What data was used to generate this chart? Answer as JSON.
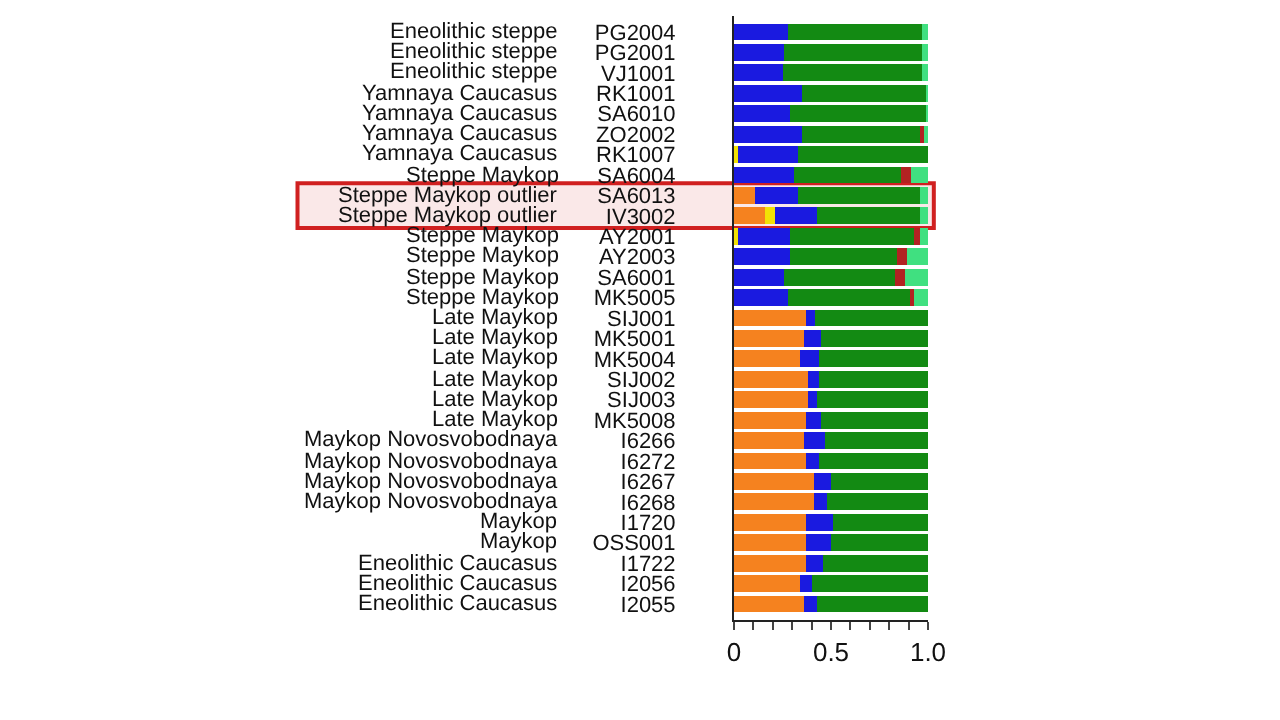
{
  "chart_data": {
    "type": "bar",
    "orientation": "horizontal",
    "stacked": true,
    "categories": [
      "PG2004",
      "PG2001",
      "VJ1001",
      "RK1001",
      "SA6010",
      "ZO2002",
      "RK1007",
      "SA6004",
      "SA6013",
      "IV3002",
      "AY2001",
      "AY2003",
      "SA6001",
      "MK5005",
      "SIJ001",
      "MK5001",
      "MK5004",
      "SIJ002",
      "SIJ003",
      "MK5008",
      "I6266",
      "I6272",
      "I6267",
      "I6268",
      "I1720",
      "OSS001",
      "I1722",
      "I2056",
      "I2055"
    ],
    "y2_categories": [
      "Eneolithic steppe",
      "Eneolithic steppe",
      "Eneolithic steppe",
      "Yamnaya Caucasus",
      "Yamnaya Caucasus",
      "Yamnaya Caucasus",
      "Yamnaya Caucasus",
      "Steppe Maykop",
      "Steppe Maykop outlier",
      "Steppe Maykop outlier",
      "Steppe Maykop",
      "Steppe Maykop",
      "Steppe Maykop",
      "Steppe Maykop",
      "Late Maykop",
      "Late Maykop",
      "Late Maykop",
      "Late Maykop",
      "Late Maykop",
      "Late Maykop",
      "Maykop Novosvobodnaya",
      "Maykop Novosvobodnaya",
      "Maykop Novosvobodnaya",
      "Maykop Novosvobodnaya",
      "Maykop",
      "Maykop",
      "Eneolithic Caucasus",
      "Eneolithic Caucasus",
      "Eneolithic Caucasus"
    ],
    "series": [
      {
        "color": "#f5821f",
        "values": [
          0,
          0,
          0,
          0,
          0,
          0,
          0,
          0,
          0.11,
          0.16,
          0,
          0,
          0,
          0,
          0.37,
          0.36,
          0.34,
          0.38,
          0.38,
          0.37,
          0.36,
          0.37,
          0.41,
          0.41,
          0.37,
          0.37,
          0.37,
          0.34,
          0.36
        ]
      },
      {
        "color": "#f2e205",
        "values": [
          0,
          0,
          0,
          0,
          0,
          0,
          0.02,
          0,
          0,
          0.05,
          0.02,
          0,
          0,
          0,
          0,
          0,
          0,
          0,
          0,
          0,
          0,
          0,
          0,
          0,
          0,
          0,
          0,
          0,
          0
        ]
      },
      {
        "color": "#1a1ae0",
        "values": [
          0.28,
          0.26,
          0.25,
          0.35,
          0.29,
          0.35,
          0.31,
          0.31,
          0.22,
          0.22,
          0.27,
          0.29,
          0.26,
          0.28,
          0.05,
          0.09,
          0.1,
          0.06,
          0.05,
          0.08,
          0.11,
          0.07,
          0.09,
          0.07,
          0.14,
          0.13,
          0.09,
          0.06,
          0.07
        ]
      },
      {
        "color": "#138a13",
        "values": [
          0.69,
          0.71,
          0.72,
          0.64,
          0.7,
          0.61,
          0.67,
          0.55,
          0.63,
          0.53,
          0.64,
          0.55,
          0.57,
          0.63,
          0.58,
          0.55,
          0.56,
          0.56,
          0.57,
          0.55,
          0.53,
          0.56,
          0.5,
          0.52,
          0.49,
          0.5,
          0.54,
          0.6,
          0.57
        ]
      },
      {
        "color": "#b22222",
        "values": [
          0,
          0,
          0,
          0,
          0,
          0.02,
          0,
          0.05,
          0,
          0,
          0.03,
          0.05,
          0.05,
          0.02,
          0,
          0,
          0,
          0,
          0,
          0,
          0,
          0,
          0,
          0,
          0,
          0,
          0,
          0,
          0
        ]
      },
      {
        "color": "#40e080",
        "values": [
          0.03,
          0.03,
          0.03,
          0.01,
          0.01,
          0.02,
          0,
          0.09,
          0.04,
          0.04,
          0.04,
          0.11,
          0.12,
          0.07,
          0,
          0,
          0,
          0,
          0,
          0,
          0,
          0,
          0,
          0,
          0,
          0,
          0,
          0,
          0
        ]
      }
    ],
    "xlim": [
      0,
      1
    ],
    "xticks": [
      0,
      {
        "value": 0.1,
        "label": null
      },
      {
        "value": 0.2,
        "label": null
      },
      {
        "value": 0.3,
        "label": null
      },
      {
        "value": 0.4,
        "label": null
      },
      0.5,
      {
        "value": 0.6,
        "label": null
      },
      {
        "value": 0.7,
        "label": null
      },
      {
        "value": 0.8,
        "label": null
      },
      {
        "value": 0.9,
        "label": null
      },
      {
        "value": 1,
        "label": "1.0"
      }
    ],
    "bands": [
      {
        "axis": "y",
        "from": "SA6013",
        "to": "IV3002",
        "color": "#d02020"
      }
    ],
    "grid": false,
    "legend": false
  }
}
